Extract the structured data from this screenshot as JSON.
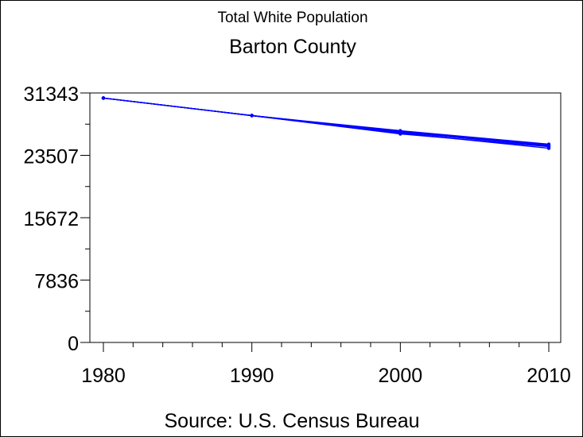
{
  "chart_data": {
    "type": "line",
    "title": "Total White Population",
    "subtitle": "Barton County",
    "footnote": "Source: U.S. Census Bureau",
    "xlabel": "",
    "ylabel": "",
    "x_ticks": [
      1980,
      1990,
      2000,
      2010
    ],
    "y_ticks": [
      0,
      7836,
      15672,
      23507,
      31343
    ],
    "xlim": [
      1980,
      2010
    ],
    "ylim": [
      0,
      31343
    ],
    "grid": false,
    "legend": "none",
    "color": "#0000ff",
    "series": [
      {
        "x": [
          1980,
          1990,
          2000,
          2010
        ],
        "y": [
          30700,
          28500,
          26500,
          24800
        ]
      },
      {
        "x": [
          1980,
          1990,
          2000,
          2010
        ],
        "y": [
          30700,
          28500,
          26200,
          24600
        ]
      },
      {
        "x": [
          1980,
          1990,
          2000,
          2010
        ],
        "y": [
          30700,
          28500,
          26300,
          24400
        ]
      },
      {
        "x": [
          1980,
          1990,
          2000,
          2010
        ],
        "y": [
          30700,
          28500,
          26600,
          24900
        ]
      },
      {
        "x": [
          1980,
          1990,
          2000,
          2010
        ],
        "y": [
          30700,
          28500,
          26400,
          24700
        ]
      }
    ]
  }
}
